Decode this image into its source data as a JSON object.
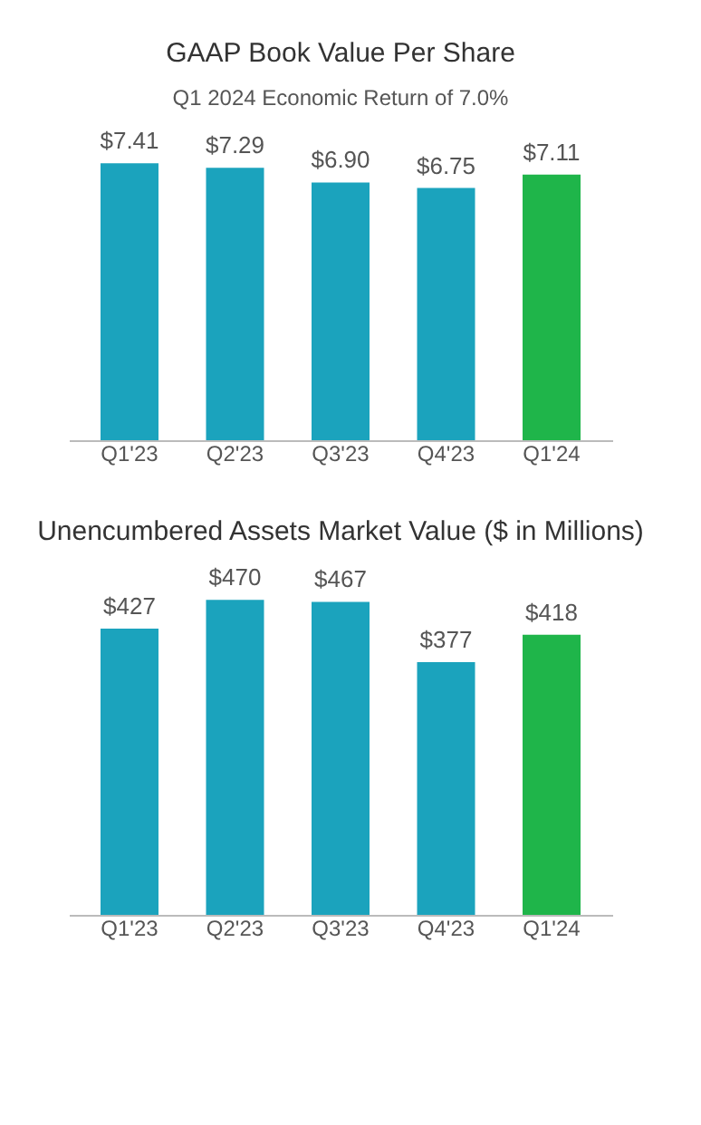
{
  "chart_data": [
    {
      "type": "bar",
      "title": "GAAP Book Value Per Share",
      "subtitle": "Q1 2024 Economic Return of 7.0%",
      "categories": [
        "Q1'23",
        "Q2'23",
        "Q3'23",
        "Q4'23",
        "Q1'24"
      ],
      "values": [
        7.41,
        7.29,
        6.9,
        6.75,
        7.11
      ],
      "value_labels": [
        "$7.41",
        "$7.29",
        "$6.90",
        "$6.75",
        "$7.11"
      ],
      "colors": [
        "#1ba3bd",
        "#1ba3bd",
        "#1ba3bd",
        "#1ba3bd",
        "#1fb54a"
      ],
      "tick_labels": "x",
      "grid": false
    },
    {
      "type": "bar",
      "title": "Unencumbered Assets Market Value ($ in Millions)",
      "categories": [
        "Q1'23",
        "Q2'23",
        "Q3'23",
        "Q4'23",
        "Q1'24"
      ],
      "values": [
        427,
        470,
        467,
        377,
        418
      ],
      "value_labels": [
        "$427",
        "$470",
        "$467",
        "$377",
        "$418"
      ],
      "colors": [
        "#1ba3bd",
        "#1ba3bd",
        "#1ba3bd",
        "#1ba3bd",
        "#1fb54a"
      ],
      "tick_labels": "x",
      "grid": false
    }
  ]
}
